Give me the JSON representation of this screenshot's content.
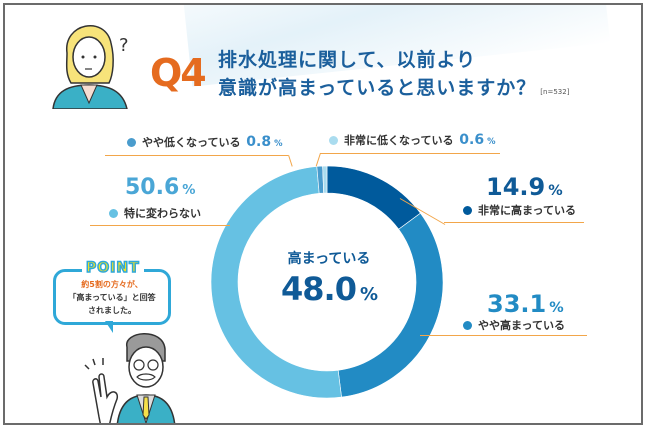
{
  "header": {
    "question_number": "Q4",
    "title_line1": "排水処理に関して、以前より",
    "title_line2": "意識が高まっていると思いますか？",
    "sample_size": "[n=532]"
  },
  "center": {
    "label": "高まっている",
    "value": "48.0",
    "unit": "%"
  },
  "segments": [
    {
      "label": "非常に高まっている",
      "value": "14.9",
      "unit": "%",
      "color": "#005a9c"
    },
    {
      "label": "やや高まっている",
      "value": "33.1",
      "unit": "%",
      "color": "#228bc4"
    },
    {
      "label": "特に変わらない",
      "value": "50.6",
      "unit": "%",
      "color": "#66c1e3"
    },
    {
      "label": "やや低くなっている",
      "value": "0.8",
      "unit": "%",
      "color": "#4a9ccd"
    },
    {
      "label": "非常に低くなっている",
      "value": "0.6",
      "unit": "%",
      "color": "#aadcef"
    }
  ],
  "point": {
    "badge": "POINT",
    "line1": "約5割の方々が、",
    "line2": "「高まっている」と回答",
    "line3": "されました。"
  },
  "colors": {
    "accent_orange": "#e56b1f",
    "title_blue": "#1b5f9c",
    "leader_line": "#f2a64a"
  },
  "chart_data": {
    "type": "pie",
    "subtype": "donut",
    "title": "排水処理に関して、以前より意識が高まっていると思いますか？",
    "sample_size": 532,
    "categories": [
      "非常に高まっている",
      "やや高まっている",
      "特に変わらない",
      "やや低くなっている",
      "非常に低くなっている"
    ],
    "values": [
      14.9,
      33.1,
      50.6,
      0.8,
      0.6
    ],
    "colors": [
      "#005a9c",
      "#228bc4",
      "#66c1e3",
      "#4a9ccd",
      "#aadcef"
    ],
    "center_annotation": {
      "label": "高まっている",
      "value": 48.0
    },
    "start_angle": "12 o'clock",
    "direction": "clockwise",
    "legend": "inline labels with leader lines"
  }
}
